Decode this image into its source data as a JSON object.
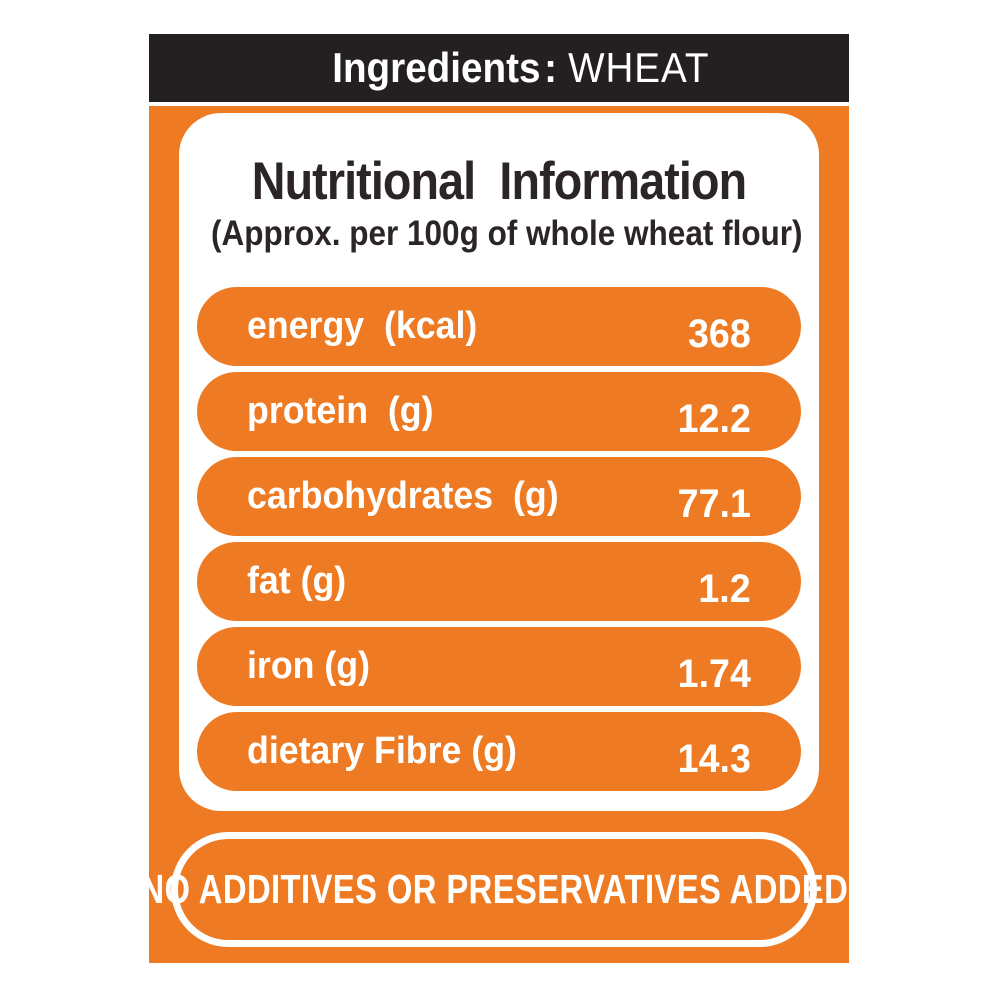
{
  "colors": {
    "orange": "#EE7B23",
    "bar_black": "#242021",
    "title_text": "#2B2526",
    "text_white": "#FFFFFF"
  },
  "ingredients_bar": {
    "label": "Ingredients",
    "separator": ":",
    "value": "WHEAT"
  },
  "header": {
    "title": "Nutritional  Information",
    "subtitle": "(Approx. per 100g of whole wheat flour)"
  },
  "nutrition_rows": [
    {
      "label": "energy  (kcal)",
      "value": "368"
    },
    {
      "label": "protein  (g)",
      "value": "12.2"
    },
    {
      "label": "carbohydrates  (g)",
      "value": "77.1"
    },
    {
      "label": "fat (g)",
      "value": "1.2"
    },
    {
      "label": "iron (g)",
      "value": "1.74"
    },
    {
      "label": "dietary Fibre (g)",
      "value": "14.3"
    }
  ],
  "footer": {
    "badge_text": "NO ADDITIVES OR PRESERVATIVES ADDED"
  }
}
